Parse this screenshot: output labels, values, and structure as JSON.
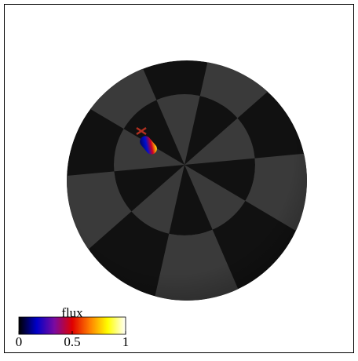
{
  "chart_data": {
    "type": "surface",
    "colorbar": {
      "label": "flux",
      "clim": [
        0,
        1
      ],
      "ticks": [
        0,
        0.5,
        1
      ],
      "colormap": [
        "#000000",
        "#0000c8",
        "#7a0aa0",
        "#e00000",
        "#ff8000",
        "#ffff00",
        "#ffffff"
      ]
    }
  }
}
